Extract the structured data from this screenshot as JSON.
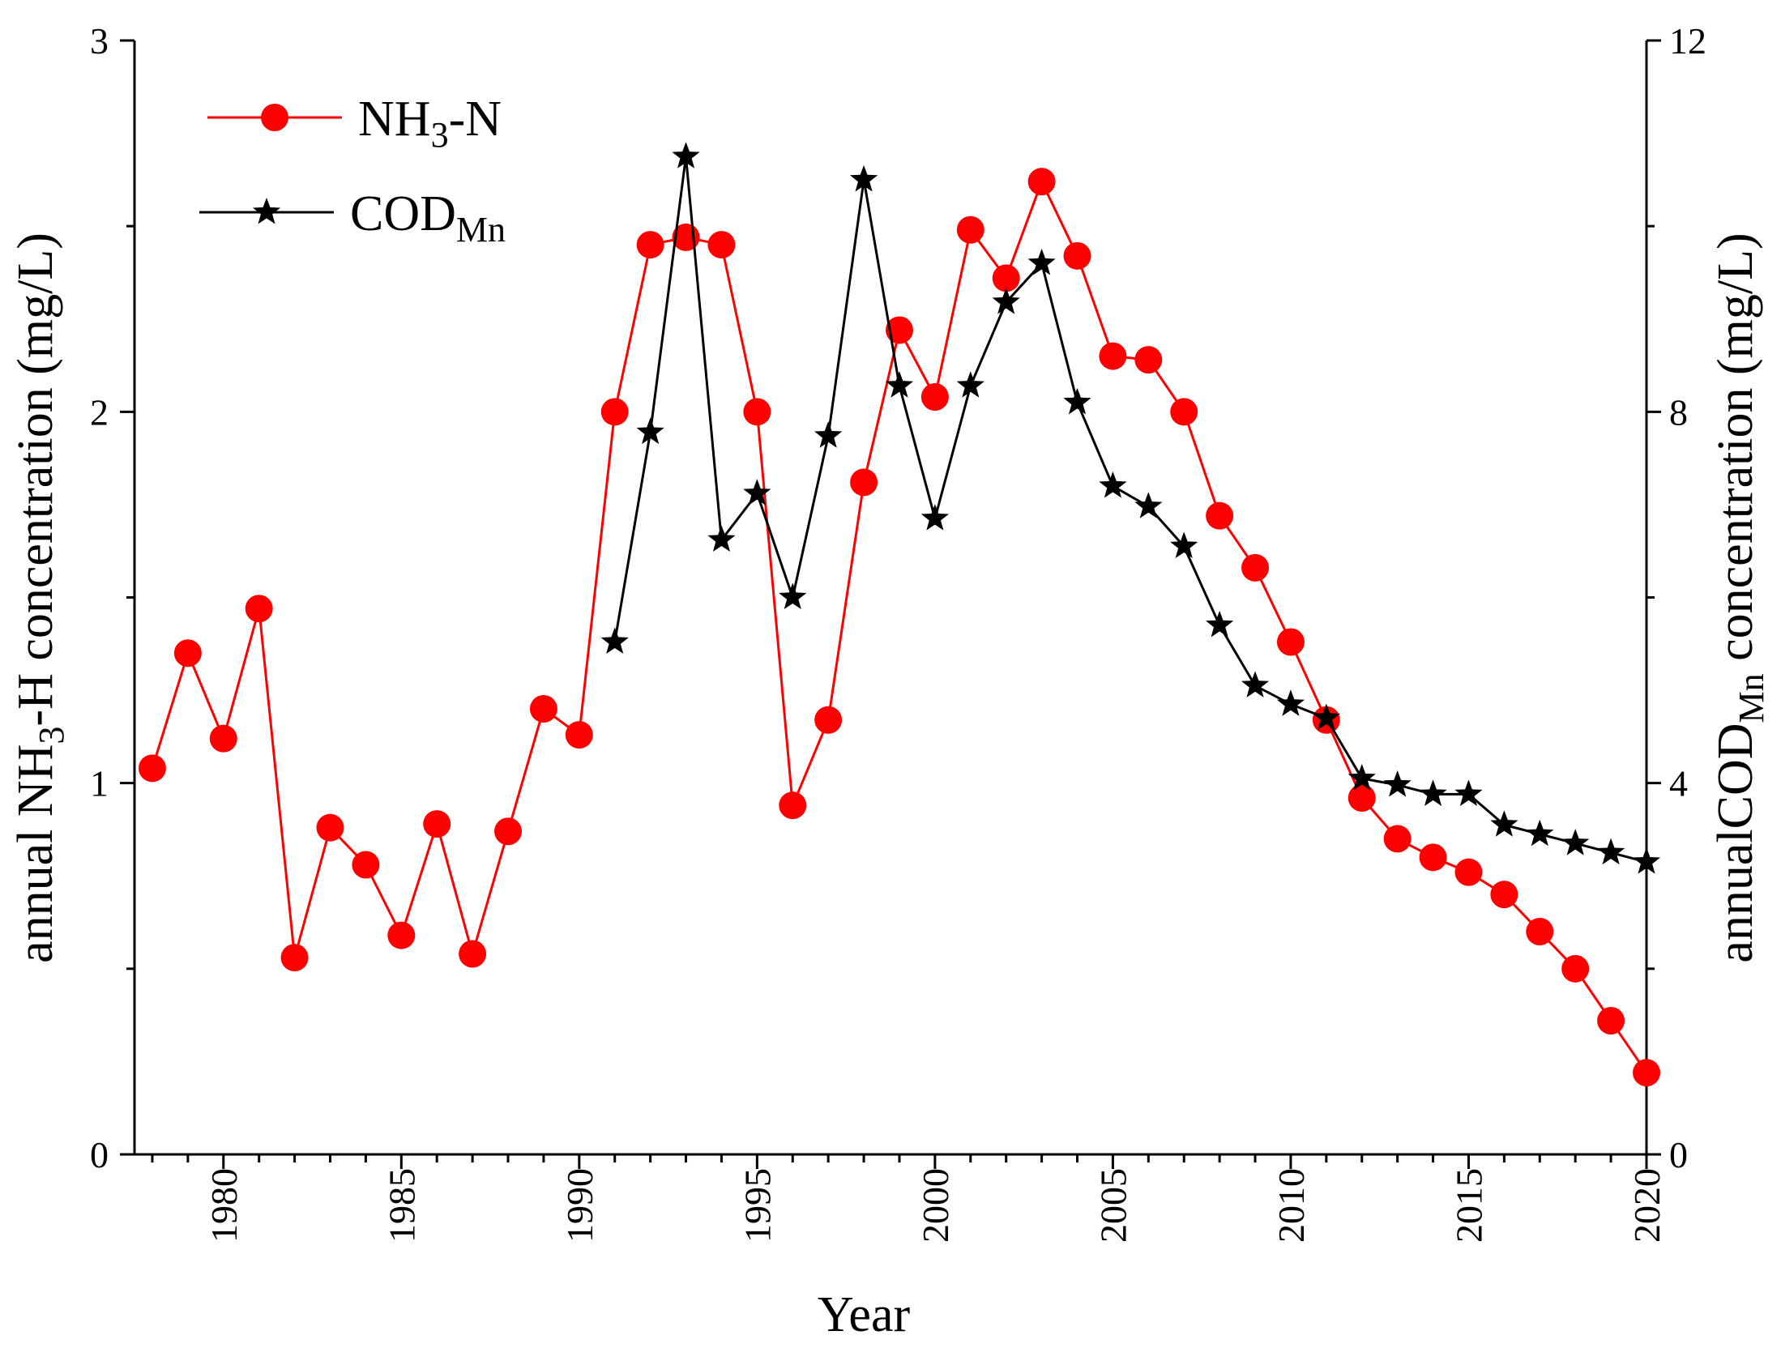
{
  "chart_data": {
    "type": "line",
    "xlabel": "Year",
    "ylabel_left": {
      "prefix": "annual NH",
      "sub": "3",
      "suffix": "-H concentration (mg/L)"
    },
    "ylabel_right": {
      "prefix": "annualCOD",
      "sub": "Mn",
      "suffix": " concentration (mg/L)"
    },
    "xlim": [
      1977.5,
      2020
    ],
    "ylim_left": [
      0,
      3
    ],
    "ylim_right": [
      0,
      12
    ],
    "x_ticks": [
      1980,
      1985,
      1990,
      1995,
      2000,
      2005,
      2010,
      2015,
      2020
    ],
    "y_left_ticks": [
      0,
      1,
      2,
      3
    ],
    "y_right_ticks": [
      0,
      4,
      8,
      12
    ],
    "grid": false,
    "legend_position": "top-left",
    "series": [
      {
        "name": "NH3-N",
        "legend": {
          "main": "NH",
          "sub": "3",
          "rest": "-N"
        },
        "axis": "left",
        "marker": "circle",
        "color": "#ff0000",
        "x": [
          1978,
          1979,
          1980,
          1981,
          1982,
          1983,
          1984,
          1985,
          1986,
          1987,
          1988,
          1989,
          1990,
          1991,
          1992,
          1993,
          1994,
          1995,
          1996,
          1997,
          1998,
          1999,
          2000,
          2001,
          2002,
          2003,
          2004,
          2005,
          2006,
          2007,
          2008,
          2009,
          2010,
          2011,
          2012,
          2013,
          2014,
          2015,
          2016,
          2017,
          2018,
          2019,
          2020
        ],
        "values": [
          1.04,
          1.35,
          1.12,
          1.47,
          0.53,
          0.88,
          0.78,
          0.59,
          0.89,
          0.54,
          0.87,
          1.2,
          1.13,
          2.0,
          2.45,
          2.47,
          2.45,
          2.0,
          0.94,
          1.17,
          1.81,
          2.22,
          2.04,
          2.49,
          2.36,
          2.62,
          2.42,
          2.15,
          2.14,
          2.0,
          1.72,
          1.58,
          1.38,
          1.17,
          0.96,
          0.85,
          0.8,
          0.76,
          0.7,
          0.6,
          0.5,
          0.36,
          0.22
        ]
      },
      {
        "name": "CODMn",
        "legend": {
          "main": "COD",
          "sub": "Mn",
          "rest": ""
        },
        "axis": "right",
        "marker": "star",
        "color": "#000000",
        "x": [
          1991,
          1992,
          1993,
          1994,
          1995,
          1996,
          1997,
          1998,
          1999,
          2000,
          2001,
          2002,
          2003,
          2004,
          2005,
          2006,
          2007,
          2008,
          2009,
          2010,
          2011,
          2012,
          2013,
          2014,
          2015,
          2016,
          2017,
          2018,
          2019,
          2020
        ],
        "values": [
          5.52,
          7.78,
          10.75,
          6.62,
          7.12,
          6.0,
          7.74,
          10.5,
          8.28,
          6.85,
          8.28,
          9.18,
          9.6,
          8.1,
          7.2,
          6.98,
          6.55,
          5.7,
          5.05,
          4.85,
          4.7,
          4.05,
          3.98,
          3.88,
          3.88,
          3.55,
          3.45,
          3.35,
          3.25,
          3.15
        ]
      }
    ]
  }
}
